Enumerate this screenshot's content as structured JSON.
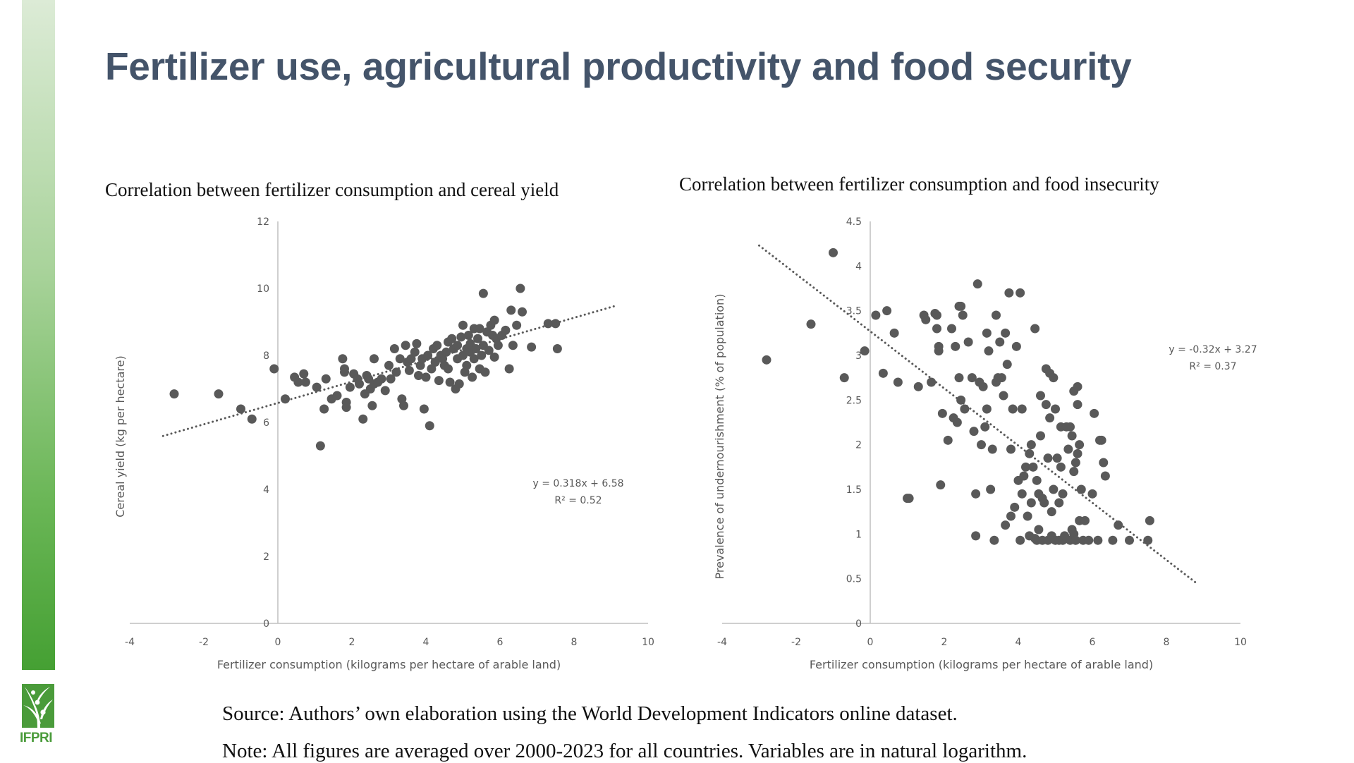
{
  "slide": {
    "title": "Fertilizer use, agricultural productivity and food security",
    "source": "Source: Authors’ own elaboration using the World Development Indicators online dataset.",
    "note": "Note: All figures are averaged over 2000-2023 for all countries. Variables are in natural logarithm.",
    "logo_text": "IFPRI",
    "accent_color": "#4a9b3a",
    "title_color": "#44546a"
  },
  "chart_data": [
    {
      "type": "scatter",
      "title": "Correlation between fertilizer consumption and cereal yield",
      "xlabel": "Fertilizer consumption (kilograms per hectare of arable land)",
      "ylabel": "Cereal yield (kg per hectare)",
      "xlim": [
        -4,
        10
      ],
      "ylim": [
        0,
        12
      ],
      "xticks": [
        -4,
        -2,
        0,
        2,
        4,
        6,
        8,
        10
      ],
      "yticks": [
        0,
        2,
        4,
        6,
        8,
        10,
        12
      ],
      "grid": false,
      "marker_color": "#595959",
      "trendline": {
        "slope": 0.318,
        "intercept": 6.58,
        "x_range": [
          -3.1,
          9.1
        ],
        "style": "dotted"
      },
      "equation": "y = 0.318x + 6.58",
      "r2": "R² = 0.52",
      "points": [
        [
          -2.8,
          6.85
        ],
        [
          -1.6,
          6.85
        ],
        [
          -1.0,
          6.4
        ],
        [
          -0.7,
          6.1
        ],
        [
          -0.1,
          7.6
        ],
        [
          0.2,
          6.7
        ],
        [
          0.45,
          7.35
        ],
        [
          0.55,
          7.2
        ],
        [
          0.7,
          7.45
        ],
        [
          0.75,
          7.2
        ],
        [
          1.05,
          7.05
        ],
        [
          1.15,
          5.3
        ],
        [
          1.25,
          6.4
        ],
        [
          1.3,
          7.3
        ],
        [
          1.45,
          6.7
        ],
        [
          1.6,
          6.8
        ],
        [
          1.75,
          7.9
        ],
        [
          1.8,
          7.5
        ],
        [
          1.8,
          7.6
        ],
        [
          1.85,
          6.6
        ],
        [
          1.85,
          6.45
        ],
        [
          1.95,
          7.05
        ],
        [
          2.05,
          7.45
        ],
        [
          2.15,
          7.3
        ],
        [
          2.2,
          7.15
        ],
        [
          2.3,
          6.1
        ],
        [
          2.35,
          6.85
        ],
        [
          2.4,
          7.4
        ],
        [
          2.45,
          7.3
        ],
        [
          2.5,
          7.0
        ],
        [
          2.55,
          6.5
        ],
        [
          2.6,
          7.9
        ],
        [
          2.6,
          7.15
        ],
        [
          2.7,
          7.2
        ],
        [
          2.8,
          7.3
        ],
        [
          2.9,
          6.95
        ],
        [
          3.0,
          7.7
        ],
        [
          3.05,
          7.3
        ],
        [
          3.15,
          8.2
        ],
        [
          3.2,
          7.5
        ],
        [
          3.3,
          7.9
        ],
        [
          3.35,
          6.7
        ],
        [
          3.4,
          6.5
        ],
        [
          3.45,
          8.3
        ],
        [
          3.5,
          7.8
        ],
        [
          3.55,
          7.55
        ],
        [
          3.6,
          7.9
        ],
        [
          3.7,
          8.1
        ],
        [
          3.75,
          8.35
        ],
        [
          3.8,
          7.4
        ],
        [
          3.85,
          7.7
        ],
        [
          3.9,
          7.9
        ],
        [
          3.95,
          6.4
        ],
        [
          4.0,
          7.35
        ],
        [
          4.05,
          8.0
        ],
        [
          4.1,
          5.9
        ],
        [
          4.15,
          7.6
        ],
        [
          4.2,
          8.2
        ],
        [
          4.25,
          7.8
        ],
        [
          4.3,
          8.3
        ],
        [
          4.35,
          7.25
        ],
        [
          4.4,
          8.0
        ],
        [
          4.45,
          7.9
        ],
        [
          4.5,
          7.7
        ],
        [
          4.55,
          8.1
        ],
        [
          4.6,
          8.4
        ],
        [
          4.6,
          7.6
        ],
        [
          4.65,
          7.2
        ],
        [
          4.7,
          8.5
        ],
        [
          4.75,
          8.2
        ],
        [
          4.8,
          7.0
        ],
        [
          4.85,
          7.9
        ],
        [
          4.85,
          8.3
        ],
        [
          4.9,
          7.15
        ],
        [
          4.95,
          8.55
        ],
        [
          5.0,
          8.0
        ],
        [
          5.0,
          8.9
        ],
        [
          5.05,
          7.5
        ],
        [
          5.1,
          8.2
        ],
        [
          5.1,
          7.7
        ],
        [
          5.15,
          8.6
        ],
        [
          5.2,
          8.1
        ],
        [
          5.2,
          8.35
        ],
        [
          5.25,
          7.35
        ],
        [
          5.3,
          8.8
        ],
        [
          5.3,
          7.9
        ],
        [
          5.35,
          8.2
        ],
        [
          5.4,
          8.5
        ],
        [
          5.45,
          7.6
        ],
        [
          5.45,
          8.8
        ],
        [
          5.5,
          8.0
        ],
        [
          5.55,
          8.3
        ],
        [
          5.55,
          9.85
        ],
        [
          5.6,
          7.5
        ],
        [
          5.65,
          8.7
        ],
        [
          5.7,
          8.15
        ],
        [
          5.75,
          8.9
        ],
        [
          5.8,
          8.6
        ],
        [
          5.85,
          7.95
        ],
        [
          5.85,
          9.05
        ],
        [
          5.9,
          8.5
        ],
        [
          5.95,
          8.3
        ],
        [
          6.05,
          8.6
        ],
        [
          6.15,
          8.75
        ],
        [
          6.25,
          7.6
        ],
        [
          6.3,
          9.35
        ],
        [
          6.35,
          8.3
        ],
        [
          6.45,
          8.9
        ],
        [
          6.55,
          10.0
        ],
        [
          6.6,
          9.3
        ],
        [
          6.85,
          8.25
        ],
        [
          7.3,
          8.95
        ],
        [
          7.5,
          8.95
        ],
        [
          7.55,
          8.2
        ]
      ]
    },
    {
      "type": "scatter",
      "title": "Correlation between fertilizer consumption and food insecurity",
      "xlabel": "Fertilizer consumption (kilograms per hectare of arable land)",
      "ylabel": "Prevalence of undernourishment (% of population)",
      "xlim": [
        -4,
        10
      ],
      "ylim": [
        0,
        4.5
      ],
      "xticks": [
        -4,
        -2,
        0,
        2,
        4,
        6,
        8,
        10
      ],
      "yticks": [
        0,
        0.5,
        1,
        1.5,
        2,
        2.5,
        3,
        3.5,
        4,
        4.5
      ],
      "grid": false,
      "marker_color": "#595959",
      "trendline": {
        "slope": -0.32,
        "intercept": 3.27,
        "x_range": [
          -3.0,
          8.8
        ],
        "style": "dotted"
      },
      "equation": "y = -0.32x + 3.27",
      "r2": "R² = 0.37",
      "points": [
        [
          -2.8,
          2.95
        ],
        [
          -1.6,
          3.35
        ],
        [
          -1.0,
          4.15
        ],
        [
          -0.7,
          2.75
        ],
        [
          -0.15,
          3.05
        ],
        [
          0.15,
          3.45
        ],
        [
          0.45,
          3.5
        ],
        [
          0.35,
          2.8
        ],
        [
          0.65,
          3.25
        ],
        [
          0.75,
          2.7
        ],
        [
          1.0,
          1.4
        ],
        [
          1.05,
          1.4
        ],
        [
          1.3,
          2.65
        ],
        [
          1.45,
          3.45
        ],
        [
          1.5,
          3.4
        ],
        [
          1.65,
          2.7
        ],
        [
          1.75,
          3.47
        ],
        [
          1.8,
          3.45
        ],
        [
          1.8,
          3.3
        ],
        [
          1.85,
          3.1
        ],
        [
          1.85,
          3.05
        ],
        [
          1.9,
          1.55
        ],
        [
          1.95,
          2.35
        ],
        [
          2.1,
          2.05
        ],
        [
          2.2,
          3.3
        ],
        [
          2.25,
          2.3
        ],
        [
          2.3,
          3.1
        ],
        [
          2.35,
          2.25
        ],
        [
          2.4,
          2.75
        ],
        [
          2.4,
          3.55
        ],
        [
          2.45,
          3.55
        ],
        [
          2.45,
          2.5
        ],
        [
          2.5,
          3.45
        ],
        [
          2.55,
          2.4
        ],
        [
          2.65,
          3.15
        ],
        [
          2.75,
          2.75
        ],
        [
          2.8,
          2.15
        ],
        [
          2.85,
          1.45
        ],
        [
          2.85,
          0.98
        ],
        [
          2.9,
          3.8
        ],
        [
          2.95,
          2.7
        ],
        [
          3.0,
          2.0
        ],
        [
          3.05,
          2.65
        ],
        [
          3.1,
          2.2
        ],
        [
          3.15,
          3.25
        ],
        [
          3.15,
          2.4
        ],
        [
          3.2,
          3.05
        ],
        [
          3.25,
          1.5
        ],
        [
          3.3,
          1.95
        ],
        [
          3.35,
          0.93
        ],
        [
          3.4,
          2.7
        ],
        [
          3.4,
          3.45
        ],
        [
          3.45,
          2.75
        ],
        [
          3.5,
          3.15
        ],
        [
          3.55,
          2.75
        ],
        [
          3.6,
          2.55
        ],
        [
          3.65,
          3.25
        ],
        [
          3.65,
          1.1
        ],
        [
          3.7,
          2.9
        ],
        [
          3.75,
          3.7
        ],
        [
          3.8,
          1.95
        ],
        [
          3.8,
          1.2
        ],
        [
          3.85,
          2.4
        ],
        [
          3.9,
          1.3
        ],
        [
          3.95,
          3.1
        ],
        [
          4.0,
          1.6
        ],
        [
          4.05,
          3.7
        ],
        [
          4.05,
          0.93
        ],
        [
          4.1,
          2.4
        ],
        [
          4.1,
          1.45
        ],
        [
          4.15,
          1.65
        ],
        [
          4.2,
          1.75
        ],
        [
          4.25,
          1.2
        ],
        [
          4.3,
          0.98
        ],
        [
          4.3,
          1.9
        ],
        [
          4.35,
          2.0
        ],
        [
          4.35,
          1.35
        ],
        [
          4.4,
          1.75
        ],
        [
          4.45,
          3.3
        ],
        [
          4.45,
          0.95
        ],
        [
          4.5,
          0.93
        ],
        [
          4.5,
          1.6
        ],
        [
          4.55,
          1.45
        ],
        [
          4.55,
          1.05
        ],
        [
          4.6,
          2.55
        ],
        [
          4.6,
          2.1
        ],
        [
          4.65,
          1.4
        ],
        [
          4.65,
          0.93
        ],
        [
          4.7,
          1.35
        ],
        [
          4.75,
          2.45
        ],
        [
          4.75,
          2.85
        ],
        [
          4.8,
          0.93
        ],
        [
          4.8,
          1.85
        ],
        [
          4.85,
          2.8
        ],
        [
          4.85,
          2.3
        ],
        [
          4.9,
          0.98
        ],
        [
          4.9,
          1.25
        ],
        [
          4.95,
          2.75
        ],
        [
          4.95,
          1.5
        ],
        [
          5.0,
          0.93
        ],
        [
          5.0,
          2.4
        ],
        [
          5.05,
          1.85
        ],
        [
          5.1,
          1.35
        ],
        [
          5.1,
          0.93
        ],
        [
          5.15,
          1.75
        ],
        [
          5.15,
          2.2
        ],
        [
          5.2,
          1.45
        ],
        [
          5.2,
          0.93
        ],
        [
          5.25,
          0.98
        ],
        [
          5.3,
          2.2
        ],
        [
          5.35,
          1.95
        ],
        [
          5.4,
          2.2
        ],
        [
          5.4,
          0.93
        ],
        [
          5.45,
          2.1
        ],
        [
          5.45,
          1.05
        ],
        [
          5.5,
          1.7
        ],
        [
          5.5,
          2.6
        ],
        [
          5.5,
          1.0
        ],
        [
          5.55,
          1.8
        ],
        [
          5.55,
          0.93
        ],
        [
          5.6,
          2.65
        ],
        [
          5.6,
          2.45
        ],
        [
          5.6,
          1.9
        ],
        [
          5.65,
          1.15
        ],
        [
          5.65,
          2.0
        ],
        [
          5.7,
          1.5
        ],
        [
          5.75,
          0.93
        ],
        [
          5.8,
          1.15
        ],
        [
          5.9,
          0.93
        ],
        [
          6.0,
          1.45
        ],
        [
          6.05,
          2.35
        ],
        [
          6.15,
          0.93
        ],
        [
          6.2,
          2.05
        ],
        [
          6.25,
          2.05
        ],
        [
          6.3,
          1.8
        ],
        [
          6.35,
          1.65
        ],
        [
          6.55,
          0.93
        ],
        [
          6.7,
          1.1
        ],
        [
          7.0,
          0.93
        ],
        [
          7.5,
          0.93
        ],
        [
          7.55,
          1.15
        ]
      ]
    }
  ]
}
